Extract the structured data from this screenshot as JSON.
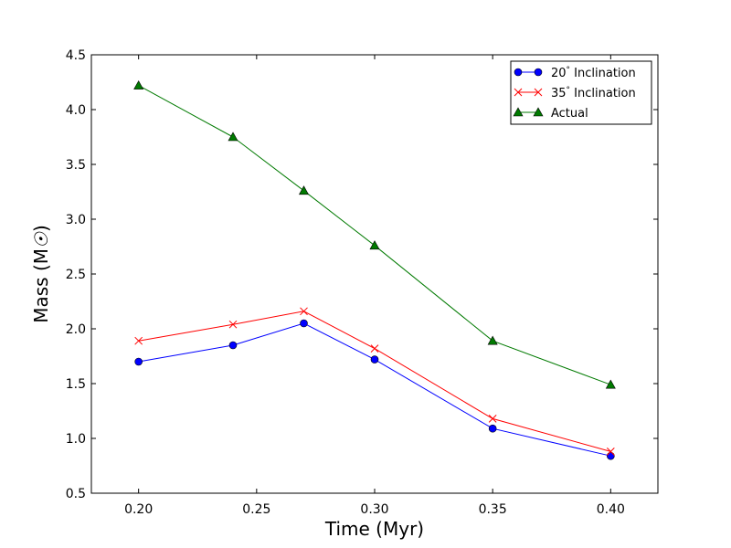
{
  "chart_data": {
    "type": "line",
    "title": "",
    "xlabel": "Time (Myr)",
    "ylabel": "Mass (M",
    "ylabel_symbol": "☉",
    "ylabel_close": ")",
    "xlim": [
      0.18,
      0.42
    ],
    "ylim": [
      0.5,
      4.5
    ],
    "xticks": [
      "0.20",
      "0.25",
      "0.30",
      "0.35",
      "0.40"
    ],
    "xtick_values": [
      0.2,
      0.25,
      0.3,
      0.35,
      0.4
    ],
    "yticks": [
      "0.5",
      "1.0",
      "1.5",
      "2.0",
      "2.5",
      "3.0",
      "3.5",
      "4.0",
      "4.5"
    ],
    "ytick_values": [
      0.5,
      1.0,
      1.5,
      2.0,
      2.5,
      3.0,
      3.5,
      4.0,
      4.5
    ],
    "grid": false,
    "legend_position": "top-right",
    "x": [
      0.2,
      0.24,
      0.27,
      0.3,
      0.35,
      0.4
    ],
    "series": [
      {
        "name": "20° Inclination",
        "number": "20",
        "degree": "°",
        "suffix": "Inclination",
        "color": "#0000ff",
        "marker": "circle",
        "values": [
          1.7,
          1.85,
          2.05,
          1.72,
          1.09,
          0.84
        ]
      },
      {
        "name": "35° Inclination",
        "number": "35",
        "degree": "°",
        "suffix": "Inclination",
        "color": "#ff0000",
        "marker": "x",
        "values": [
          1.89,
          2.04,
          2.16,
          1.82,
          1.18,
          0.88
        ]
      },
      {
        "name": "Actual",
        "number": "",
        "degree": "",
        "suffix": "Actual",
        "color": "#007a00",
        "marker": "triangle",
        "values": [
          4.22,
          3.75,
          3.26,
          2.76,
          1.89,
          1.49
        ]
      }
    ]
  }
}
